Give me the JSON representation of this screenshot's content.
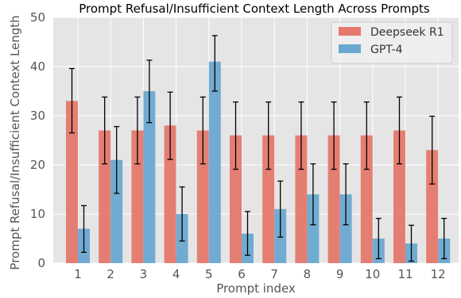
{
  "chart_data": {
    "type": "bar",
    "title": "Prompt Refusal/Insufficient Context Length Across Prompts",
    "xlabel": "Prompt index",
    "ylabel": "Prompt Refusal/Insufficient Context Length",
    "categories": [
      "1",
      "2",
      "3",
      "4",
      "5",
      "6",
      "7",
      "8",
      "9",
      "10",
      "11",
      "12"
    ],
    "ylim": [
      0,
      50
    ],
    "yticks": [
      "0",
      "10",
      "20",
      "30",
      "40",
      "50"
    ],
    "grid": true,
    "legend_position": "top-right",
    "series": [
      {
        "name": "Deepseek R1",
        "color": "#e5786c",
        "values": [
          33,
          27,
          27,
          28,
          27,
          26,
          26,
          26,
          26,
          26,
          27,
          23
        ],
        "error_low": [
          26.5,
          20.2,
          20.2,
          21.1,
          20.2,
          19.1,
          19.1,
          19.1,
          19.1,
          19.1,
          20.2,
          16.1
        ],
        "error_high": [
          39.6,
          33.8,
          33.8,
          34.8,
          33.8,
          32.8,
          32.8,
          32.8,
          32.8,
          32.8,
          33.8,
          29.9
        ]
      },
      {
        "name": "GPT-4",
        "color": "#6aa8d0",
        "values": [
          7,
          21,
          35,
          10,
          41,
          6,
          11,
          14,
          14,
          5,
          4,
          5
        ],
        "error_low": [
          2.2,
          14.2,
          28.6,
          4.5,
          35.0,
          1.6,
          5.3,
          7.8,
          7.8,
          0.9,
          0.4,
          0.9
        ],
        "error_high": [
          11.7,
          27.8,
          41.3,
          15.5,
          46.3,
          10.5,
          16.7,
          20.2,
          20.2,
          9.1,
          7.7,
          9.1
        ]
      }
    ]
  }
}
